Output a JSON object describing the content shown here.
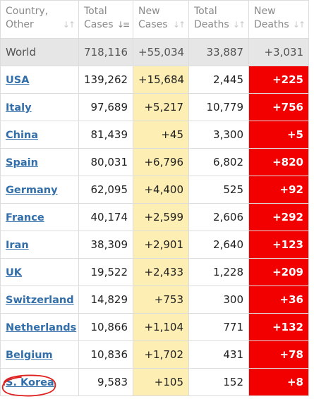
{
  "headers": [
    {
      "line1": "Country,",
      "line2": "Other",
      "sorted": false
    },
    {
      "line1": "Total",
      "line2": "Cases",
      "sorted": true
    },
    {
      "line1": "New",
      "line2": "Cases",
      "sorted": false
    },
    {
      "line1": "Total",
      "line2": "Deaths",
      "sorted": false
    },
    {
      "line1": "New",
      "line2": "Deaths",
      "sorted": false
    }
  ],
  "sort_icons": {
    "default": "↓↑",
    "active": "↓≡"
  },
  "world": {
    "country": "World",
    "total_cases": "718,116",
    "new_cases": "+55,034",
    "total_deaths": "33,887",
    "new_deaths": "+3,031"
  },
  "rows": [
    {
      "country": "USA",
      "total_cases": "139,262",
      "new_cases": "+15,684",
      "total_deaths": "2,445",
      "new_deaths": "+225"
    },
    {
      "country": "Italy",
      "total_cases": "97,689",
      "new_cases": "+5,217",
      "total_deaths": "10,779",
      "new_deaths": "+756"
    },
    {
      "country": "China",
      "total_cases": "81,439",
      "new_cases": "+45",
      "total_deaths": "3,300",
      "new_deaths": "+5"
    },
    {
      "country": "Spain",
      "total_cases": "80,031",
      "new_cases": "+6,796",
      "total_deaths": "6,802",
      "new_deaths": "+820"
    },
    {
      "country": "Germany",
      "total_cases": "62,095",
      "new_cases": "+4,400",
      "total_deaths": "525",
      "new_deaths": "+92"
    },
    {
      "country": "France",
      "total_cases": "40,174",
      "new_cases": "+2,599",
      "total_deaths": "2,606",
      "new_deaths": "+292"
    },
    {
      "country": "Iran",
      "total_cases": "38,309",
      "new_cases": "+2,901",
      "total_deaths": "2,640",
      "new_deaths": "+123"
    },
    {
      "country": "UK",
      "total_cases": "19,522",
      "new_cases": "+2,433",
      "total_deaths": "1,228",
      "new_deaths": "+209"
    },
    {
      "country": "Switzerland",
      "total_cases": "14,829",
      "new_cases": "+753",
      "total_deaths": "300",
      "new_deaths": "+36"
    },
    {
      "country": "Netherlands",
      "total_cases": "10,866",
      "new_cases": "+1,104",
      "total_deaths": "771",
      "new_deaths": "+132"
    },
    {
      "country": "Belgium",
      "total_cases": "10,836",
      "new_cases": "+1,702",
      "total_deaths": "431",
      "new_deaths": "+78"
    },
    {
      "country": "S. Korea",
      "total_cases": "9,583",
      "new_cases": "+105",
      "total_deaths": "152",
      "new_deaths": "+8"
    }
  ],
  "colors": {
    "link": "#316eaa",
    "new_cases_bg": "#fdeeb3",
    "new_deaths_bg": "#f20000",
    "world_bg": "#e6e6e6",
    "annotation": "#e0201e"
  }
}
